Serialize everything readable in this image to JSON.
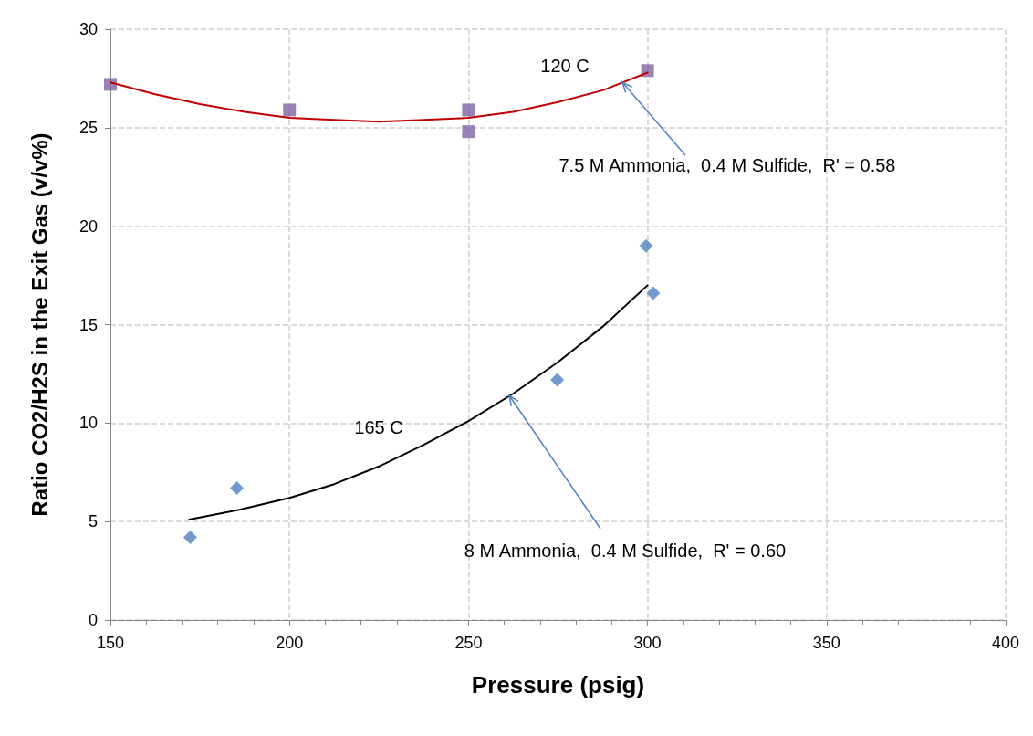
{
  "chart_data": {
    "type": "scatter",
    "xlabel": "Pressure (psig)",
    "ylabel": "Ratio CO2/H2S in the Exit Gas (v/v%)",
    "xlim": [
      150,
      400
    ],
    "xticks": [
      150,
      200,
      250,
      300,
      350,
      400
    ],
    "ylim": [
      0,
      30
    ],
    "yticks": [
      0,
      5,
      10,
      15,
      20,
      25,
      30
    ],
    "grid": true,
    "series": [
      {
        "marker": "square",
        "color": "#8064a2",
        "x": [
          150,
          200,
          250,
          250,
          300
        ],
        "values": [
          27.2,
          25.9,
          25.9,
          24.8,
          27.9
        ]
      },
      {
        "marker": "diamond",
        "color": "#4f81bd",
        "x": [
          172.3,
          185.3,
          274.8,
          299.6,
          301.6
        ],
        "values": [
          4.2,
          6.7,
          12.2,
          19.0,
          16.6
        ]
      },
      {
        "type": "line",
        "marker": "none",
        "line_style": "solid",
        "color": "#c00000",
        "x": [
          150,
          162.5,
          175,
          187.5,
          200,
          212.5,
          225,
          237.5,
          250,
          262.5,
          275,
          287.5,
          300
        ],
        "values": [
          27.3,
          26.7,
          26.2,
          25.8,
          25.5,
          25.4,
          25.3,
          25.4,
          25.5,
          25.8,
          26.3,
          26.9,
          27.8
        ]
      },
      {
        "type": "line",
        "marker": "none",
        "line_style": "solid",
        "color": "#000000",
        "x": [
          172,
          186,
          200,
          212.5,
          225,
          237.5,
          250,
          262.5,
          275,
          287.5,
          300
        ],
        "values": [
          5.1,
          5.6,
          6.2,
          6.9,
          7.8,
          8.9,
          10.1,
          11.5,
          13.1,
          14.9,
          17.0
        ]
      }
    ],
    "annotations": [
      "120 C",
      "165 C",
      {
        "text": "7.5 M Ammonia,  0.4 M Sulfide,  R' = 0.58",
        "x": 292.9,
        "y": 27.3
      },
      {
        "text": "8 M Ammonia,  0.4 M Sulfide,  R' = 0.60",
        "x": 261.3,
        "y": 11.4
      }
    ]
  }
}
